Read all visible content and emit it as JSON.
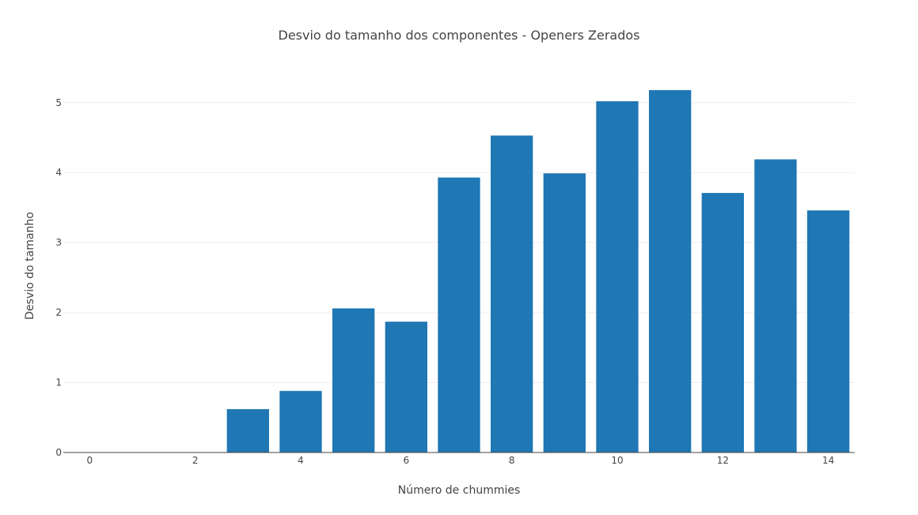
{
  "chart_data": {
    "type": "bar",
    "title": "Desvio do tamanho dos componentes - Openers Zerados",
    "xlabel": "Número de chummies",
    "ylabel": "Desvio do tamanho",
    "x": [
      0,
      1,
      2,
      3,
      4,
      5,
      6,
      7,
      8,
      9,
      10,
      11,
      12,
      13,
      14
    ],
    "values": [
      0,
      0,
      0,
      0.62,
      0.88,
      2.06,
      1.87,
      3.93,
      4.53,
      3.99,
      5.02,
      5.18,
      3.71,
      4.19,
      3.46
    ],
    "x_ticks": [
      "0",
      "2",
      "4",
      "6",
      "8",
      "10",
      "12",
      "14"
    ],
    "y_ticks": [
      "0",
      "1",
      "2",
      "3",
      "4",
      "5"
    ],
    "xlim": [
      -0.5,
      14.5
    ],
    "ylim": [
      0,
      5.45
    ],
    "grid": true,
    "legend": "none",
    "bar_color": "#1f77b4"
  }
}
